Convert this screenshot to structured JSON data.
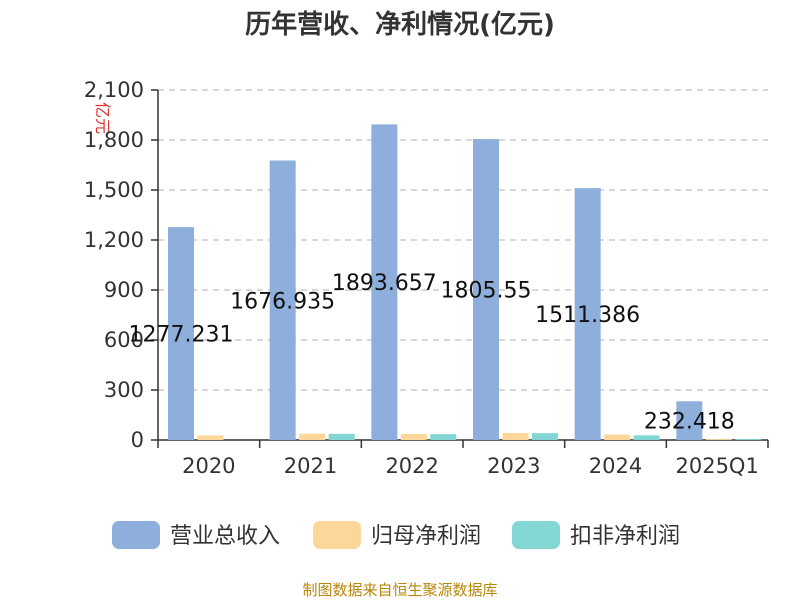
{
  "chart_data": {
    "type": "bar",
    "title": "历年营收、净利情况(亿元)",
    "ylabel": "亿元",
    "ylim": [
      0,
      2100
    ],
    "yticks": [
      "0",
      "300",
      "600",
      "900",
      "1,200",
      "1,500",
      "1,800",
      "2,100"
    ],
    "ytick_values": [
      0,
      300,
      600,
      900,
      1200,
      1500,
      1800,
      2100
    ],
    "categories": [
      "2020",
      "2021",
      "2022",
      "2023",
      "2024",
      "2025Q1"
    ],
    "series": [
      {
        "name": "营业总收入",
        "color": "#8eaedb",
        "values": [
          1277.231,
          1676.935,
          1893.657,
          1805.55,
          1511.386,
          232.418
        ]
      },
      {
        "name": "归母净利润",
        "color": "#fdd79a",
        "values": [
          28,
          38,
          36,
          42,
          32,
          5
        ]
      },
      {
        "name": "扣非净利润",
        "color": "#82d6d4",
        "values": [
          null,
          37,
          35,
          41,
          28,
          5
        ]
      }
    ],
    "data_labels": [
      "1277.231",
      "1676.935",
      "1893.657",
      "1805.55",
      "1511.386",
      "232.418"
    ],
    "grid": true,
    "legend_position": "bottom"
  },
  "source_text": "制图数据来自恒生聚源数据库"
}
